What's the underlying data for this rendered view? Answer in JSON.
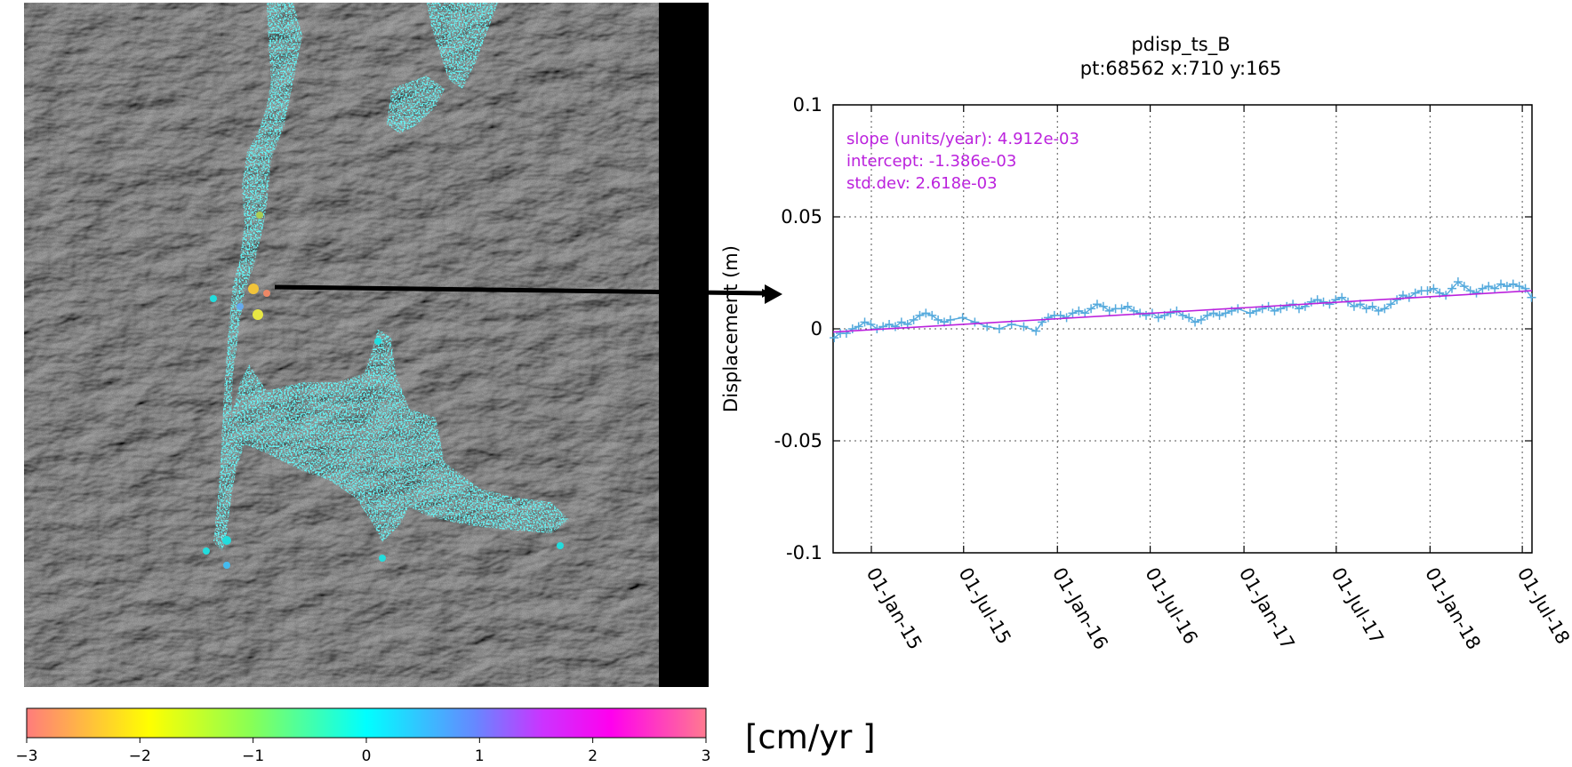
{
  "colors": {
    "fit_line": "#bb22dd",
    "series": "#55aadd",
    "points": "#22eeee",
    "background_terrain": "#5c5c5c"
  },
  "colorbar": {
    "ticks": [
      "−3",
      "−2",
      "−1",
      "0",
      "1",
      "2",
      "3"
    ],
    "unit": "[cm/yr ]",
    "range": [
      -3,
      3
    ]
  },
  "chart_data": {
    "type": "line",
    "title": "pdisp_ts_B",
    "subtitle": "pt:68562  x:710  y:165",
    "ylabel": "Displacement (m)",
    "xlabel": "",
    "ylim": [
      -0.1,
      0.1
    ],
    "xlim": [
      "2014-10-18",
      "2018-07-20"
    ],
    "yticks": [
      "0.1",
      "0.05",
      "0",
      "-0.05",
      "-0.1"
    ],
    "yticks_values": [
      0.1,
      0.05,
      0,
      -0.05,
      -0.1
    ],
    "xticks": [
      {
        "date": "2015-01-01",
        "label": "01-Jan-15"
      },
      {
        "date": "2015-07-01",
        "label": "01-Jul-15"
      },
      {
        "date": "2016-01-01",
        "label": "01-Jan-16"
      },
      {
        "date": "2016-07-01",
        "label": "01-Jul-16"
      },
      {
        "date": "2017-01-01",
        "label": "01-Jan-17"
      },
      {
        "date": "2017-07-01",
        "label": "01-Jul-17"
      },
      {
        "date": "2018-01-01",
        "label": "01-Jan-18"
      },
      {
        "date": "2018-07-01",
        "label": "01-Jul-18"
      }
    ],
    "grid": true,
    "fit": {
      "slope_label": "slope (units/year):   4.912e-03",
      "intercept_label": "intercept:  -1.386e-03",
      "stddev_label": "std.dev:  2.618e-03",
      "slope": 0.004912,
      "intercept": -0.001386
    },
    "series": [
      {
        "x": [
          "2014-10-20",
          "2014-11-01",
          "2014-11-13",
          "2014-11-25",
          "2014-12-07",
          "2014-12-19",
          "2014-12-31",
          "2015-01-12",
          "2015-01-24",
          "2015-02-05",
          "2015-02-17",
          "2015-03-01",
          "2015-03-13",
          "2015-03-25",
          "2015-04-06",
          "2015-04-18",
          "2015-04-30",
          "2015-05-12",
          "2015-05-24",
          "2015-06-05",
          "2015-06-29",
          "2015-07-23",
          "2015-08-16",
          "2015-09-09",
          "2015-10-03",
          "2015-10-27",
          "2015-11-20",
          "2015-12-02",
          "2015-12-14",
          "2015-12-26",
          "2016-01-07",
          "2016-01-19",
          "2016-01-31",
          "2016-02-12",
          "2016-02-24",
          "2016-03-07",
          "2016-03-19",
          "2016-03-31",
          "2016-04-12",
          "2016-04-24",
          "2016-05-06",
          "2016-05-18",
          "2016-05-30",
          "2016-06-11",
          "2016-06-23",
          "2016-07-05",
          "2016-07-17",
          "2016-07-29",
          "2016-08-10",
          "2016-08-22",
          "2016-09-03",
          "2016-09-15",
          "2016-09-27",
          "2016-10-09",
          "2016-10-21",
          "2016-11-02",
          "2016-11-14",
          "2016-11-26",
          "2016-12-08",
          "2016-12-20",
          "2017-01-13",
          "2017-01-25",
          "2017-02-06",
          "2017-02-18",
          "2017-03-02",
          "2017-03-14",
          "2017-03-26",
          "2017-04-07",
          "2017-04-19",
          "2017-05-01",
          "2017-05-13",
          "2017-05-25",
          "2017-06-06",
          "2017-06-18",
          "2017-06-30",
          "2017-07-12",
          "2017-07-24",
          "2017-08-05",
          "2017-08-17",
          "2017-08-29",
          "2017-09-10",
          "2017-09-22",
          "2017-10-04",
          "2017-10-16",
          "2017-10-28",
          "2017-11-09",
          "2017-11-21",
          "2017-12-03",
          "2017-12-15",
          "2017-12-27",
          "2018-01-08",
          "2018-01-20",
          "2018-02-01",
          "2018-02-13",
          "2018-02-25",
          "2018-03-09",
          "2018-03-21",
          "2018-04-02",
          "2018-04-14",
          "2018-04-26",
          "2018-05-08",
          "2018-05-20",
          "2018-06-01",
          "2018-06-13",
          "2018-06-25",
          "2018-07-07",
          "2018-07-19"
        ],
        "y": [
          -0.004,
          -0.002,
          -0.002,
          0.0,
          0.001,
          0.003,
          0.002,
          0.0,
          0.001,
          0.002,
          0.001,
          0.003,
          0.002,
          0.004,
          0.006,
          0.007,
          0.006,
          0.004,
          0.003,
          0.004,
          0.005,
          0.003,
          0.001,
          0.0,
          0.002,
          0.001,
          -0.001,
          0.003,
          0.005,
          0.006,
          0.006,
          0.005,
          0.007,
          0.008,
          0.007,
          0.009,
          0.011,
          0.01,
          0.008,
          0.009,
          0.009,
          0.01,
          0.008,
          0.007,
          0.006,
          0.007,
          0.005,
          0.006,
          0.007,
          0.008,
          0.006,
          0.005,
          0.003,
          0.004,
          0.006,
          0.007,
          0.006,
          0.007,
          0.008,
          0.009,
          0.007,
          0.008,
          0.009,
          0.01,
          0.008,
          0.009,
          0.01,
          0.011,
          0.009,
          0.01,
          0.012,
          0.013,
          0.012,
          0.011,
          0.013,
          0.014,
          0.012,
          0.01,
          0.011,
          0.009,
          0.01,
          0.008,
          0.009,
          0.011,
          0.013,
          0.015,
          0.014,
          0.016,
          0.017,
          0.017,
          0.018,
          0.016,
          0.015,
          0.018,
          0.021,
          0.019,
          0.017,
          0.016,
          0.018,
          0.019,
          0.018,
          0.02,
          0.019,
          0.02,
          0.019,
          0.018,
          0.014
        ]
      }
    ]
  }
}
